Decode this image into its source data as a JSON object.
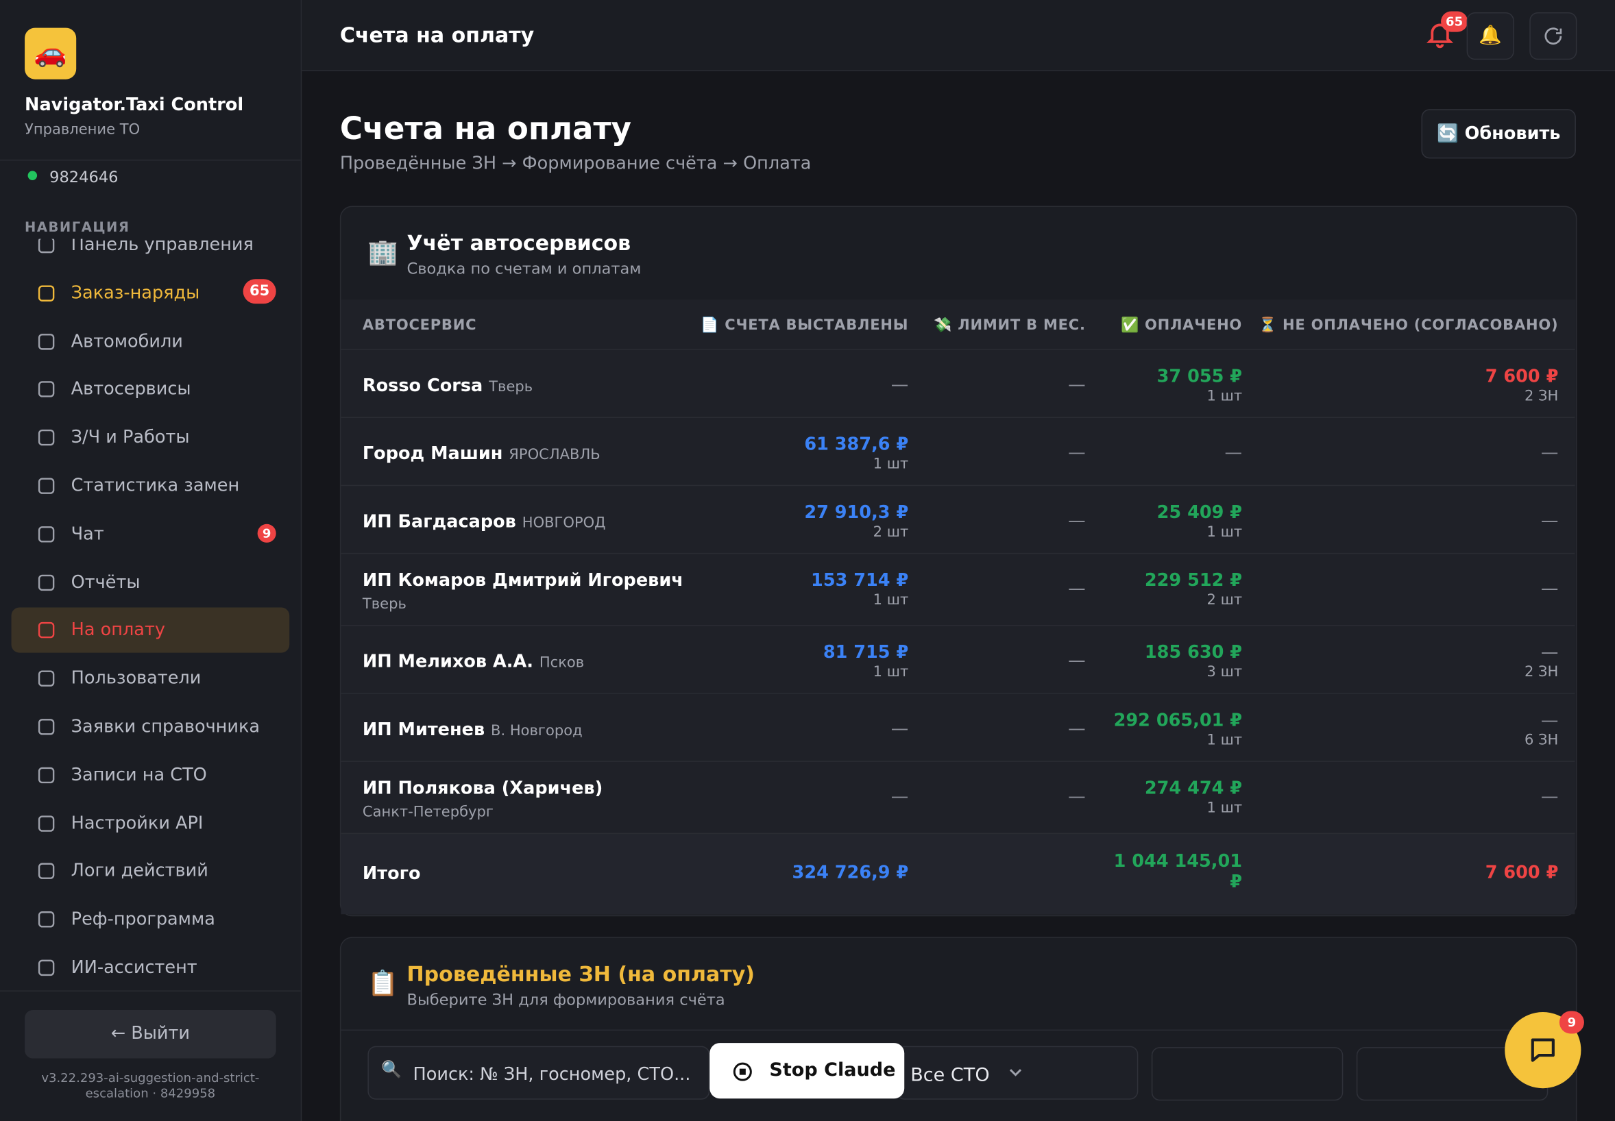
{
  "sidebar": {
    "app_icon": "🚗",
    "app_name": "Navigator.Taxi Control",
    "app_subtitle": "Управление ТО",
    "user_id": "9824646",
    "nav_heading": "НАВИГАЦИЯ",
    "nav": [
      {
        "label": "Панель управления"
      },
      {
        "label": "Заказ-наряды",
        "badge": "65"
      },
      {
        "label": "Автомобили"
      },
      {
        "label": "Автосервисы"
      },
      {
        "label": "З/Ч и Работы"
      },
      {
        "label": "Статистика замен"
      },
      {
        "label": "Чат",
        "badge": "9"
      },
      {
        "label": "Отчёты"
      },
      {
        "label": "На оплату",
        "active": true
      },
      {
        "label": "Пользователи"
      },
      {
        "label": "Заявки справочника"
      },
      {
        "label": "Записи на СТО"
      },
      {
        "label": "Настройки API"
      },
      {
        "label": "Логи действий"
      },
      {
        "label": "Реф-программа"
      },
      {
        "label": "ИИ-ассистент"
      }
    ],
    "logout": "← Выйти",
    "version": "v3.22.293-ai-suggestion-and-strict-escalation · 8429958"
  },
  "topbar": {
    "title": "Счета на оплату",
    "notification_count": "65"
  },
  "page": {
    "title": "Счета на оплату",
    "breadcrumb": "Проведённые ЗН → Формирование счёта → Оплата",
    "refresh_button": "🔄 Обновить"
  },
  "summary": {
    "icon": "🏢",
    "title": "Учёт автосервисов",
    "subtitle": "Сводка по счетам и оплатам",
    "columns": [
      "АВТОСЕРВИС",
      "📄 СЧЕТА ВЫСТАВЛЕНЫ",
      "💸 ЛИМИТ В МЕС.",
      "✅ ОПЛАЧЕНО",
      "⏳ НЕ ОПЛАЧЕНО (СОГЛАСОВАНО)"
    ],
    "rows": [
      {
        "name": "Rosso Corsa",
        "city": "Тверь",
        "cells": [
          {
            "empty": "—"
          },
          {
            "empty": "—"
          },
          {
            "amount": "37 055 ₽",
            "count": "1 шт"
          },
          {
            "amount": "7 600 ₽",
            "count": "2 ЗН"
          }
        ]
      },
      {
        "name": "Город Машин",
        "city": "ЯРОСЛАВЛЬ",
        "cells": [
          {
            "amount": "61 387,6 ₽",
            "count": "1 шт"
          },
          {
            "empty": "—"
          },
          {
            "empty": "—"
          },
          {
            "empty": "—"
          }
        ]
      },
      {
        "name": "ИП Багдасаров",
        "city": "НОВГОРОД",
        "cells": [
          {
            "amount": "27 910,3 ₽",
            "count": "2 шт"
          },
          {
            "empty": "—"
          },
          {
            "amount": "25 409 ₽",
            "count": "1 шт"
          },
          {
            "empty": "—"
          }
        ]
      },
      {
        "name": "ИП Комаров Дмитрий Игоревич",
        "city": "Тверь",
        "city_below": true,
        "cells": [
          {
            "amount": "153 714 ₽",
            "count": "1 шт"
          },
          {
            "empty": "—"
          },
          {
            "amount": "229 512 ₽",
            "count": "2 шт"
          },
          {
            "empty": "—"
          }
        ]
      },
      {
        "name": "ИП Мелихов А.А.",
        "city": "Псков",
        "cells": [
          {
            "amount": "81 715 ₽",
            "count": "1 шт"
          },
          {
            "empty": "—"
          },
          {
            "amount": "185 630 ₽",
            "count": "3 шт"
          },
          {
            "empty": "—",
            "count": "2 ЗН"
          }
        ]
      },
      {
        "name": "ИП Митенев",
        "city": "В. Новгород",
        "cells": [
          {
            "empty": "—"
          },
          {
            "empty": "—"
          },
          {
            "amount": "292 065,01 ₽",
            "count": "1 шт"
          },
          {
            "empty": "—",
            "count": "6 ЗН"
          }
        ]
      },
      {
        "name": "ИП Полякова (Харичев)",
        "city": "Санкт-Петербург",
        "cells": [
          {
            "empty": "—"
          },
          {
            "empty": "—"
          },
          {
            "amount": "274 474 ₽",
            "count": "1 шт"
          },
          {
            "empty": "—"
          }
        ]
      }
    ],
    "total": {
      "label": "Итого",
      "invoiced": "324 726,9 ₽",
      "paid": "1 044 145,01 ₽",
      "unpaid": "7 600 ₽"
    }
  },
  "orders": {
    "icon": "📋",
    "title": "Проведённые ЗН (на оплату)",
    "subtitle": "Выберите ЗН для формирования счёта",
    "search_placeholder": "Поиск: № ЗН, госномер, СТО...",
    "filter": "Все СТО"
  },
  "stop_button": "Stop Claude",
  "chat_badge": "9"
}
